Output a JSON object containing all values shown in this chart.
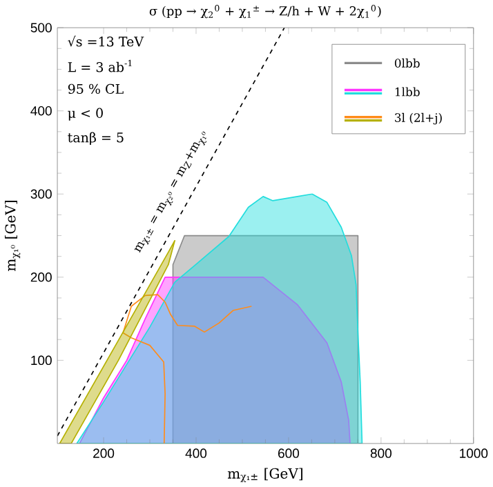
{
  "chart_data": {
    "type": "area",
    "title": "σ (pp → χ$_{2}$$^{0}$ + χ$_{1}$$^{±}$ → Z/h + W + 2χ$_{1}$$^{0}$)",
    "xlabel": "m$_{χ₁±}$ [GeV]",
    "ylabel": "m$_{χ₁⁰}$ [GeV]",
    "xlim": [
      100,
      1000
    ],
    "ylim": [
      0,
      500
    ],
    "xticks": [
      200,
      400,
      600,
      800,
      1000
    ],
    "yticks": [
      100,
      200,
      300,
      400,
      500
    ],
    "grid": false,
    "legend": "top right",
    "annotations": [
      "√s =13 TeV",
      "L = 3 ab$^{-1}$",
      "95 % CL",
      "μ < 0",
      "tanβ = 5",
      "m$_{χ₁±}$ = m$_{χ₂⁰}$ = m$_{Z}$+m$_{χ₁⁰}$"
    ],
    "series": [
      {
        "type": "line",
        "color": "#000000",
        "line_style": "dashed",
        "x": [
          100,
          591
        ],
        "values": [
          9,
          500
        ]
      },
      {
        "name": "0lbb",
        "color": "#8c8c8c",
        "x": [
          350,
          350,
          375,
          750,
          750
        ],
        "values": [
          0,
          215,
          250,
          250,
          0
        ]
      },
      {
        "name": "1lbb",
        "color": "#ff33ff",
        "x": [
          148,
          200,
          250,
          290,
          333,
          545,
          619,
          683,
          714,
          730,
          733
        ],
        "values": [
          0,
          55,
          100,
          150,
          200,
          200,
          167,
          121,
          74,
          28,
          0
        ]
      },
      {
        "color": "#22dddd",
        "x": [
          142,
          200,
          250,
          300,
          354,
          397,
          471,
          513,
          545,
          566,
          619,
          651,
          683,
          714,
          736,
          746,
          750,
          755,
          759
        ],
        "values": [
          0,
          50,
          95,
          140,
          194,
          214,
          249,
          284,
          297,
          292,
          297,
          300,
          290,
          260,
          226,
          191,
          133,
          74,
          0
        ]
      },
      {
        "name": "3l (2l+j)",
        "type": "line",
        "color": "#ff8c1a",
        "x": [
          331,
          333,
          330,
          300,
          260,
          242,
          260,
          290,
          317,
          333,
          345,
          360,
          397,
          418,
          450,
          480,
          520
        ],
        "values": [
          0,
          60,
          98,
          118,
          127,
          133,
          165,
          178,
          179,
          170,
          155,
          142,
          141,
          134,
          145,
          160,
          165
        ]
      },
      {
        "color": "#b5b000",
        "x": [
          105,
          232,
          340,
          354,
          340,
          232,
          130
        ],
        "values": [
          0,
          124,
          230,
          244,
          215,
          100,
          0
        ]
      }
    ]
  }
}
